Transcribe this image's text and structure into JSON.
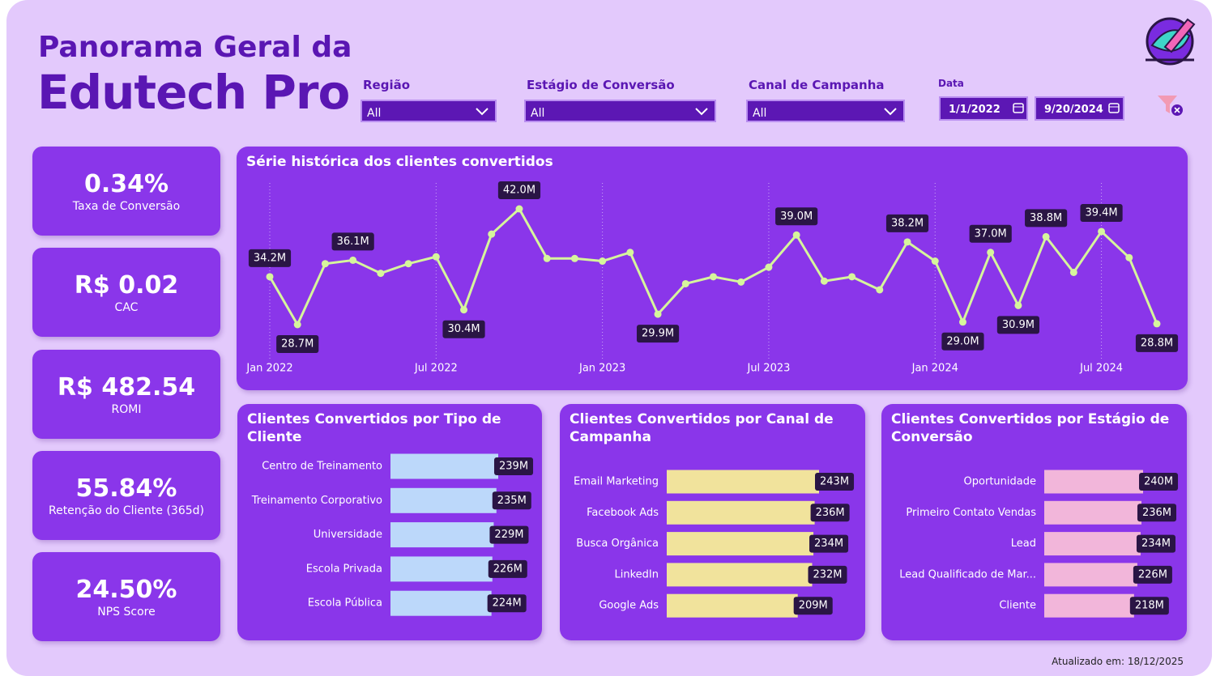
{
  "header": {
    "title_line1": "Panorama Geral da",
    "title_line2": "Edutech Pro"
  },
  "filters": [
    {
      "label": "Região",
      "value": "All"
    },
    {
      "label": "Estágio de Conversão",
      "value": "All"
    },
    {
      "label": "Canal de Campanha",
      "value": "All"
    }
  ],
  "date_filter": {
    "label": "Data",
    "start": "1/1/2022",
    "end": "9/20/2024"
  },
  "kpis": [
    {
      "value": "0.34%",
      "label": "Taxa de Conversão"
    },
    {
      "value": "R$ 0.02",
      "label": "CAC"
    },
    {
      "value": "R$ 482.54",
      "label": "ROMI"
    },
    {
      "value": "55.84%",
      "label": "Retenção do Cliente (365d)"
    },
    {
      "value": "24.50%",
      "label": "NPS Score"
    }
  ],
  "chart_data": [
    {
      "type": "line",
      "title": "Série histórica dos clientes convertidos",
      "categories": [
        "Jan 2022",
        null,
        null,
        null,
        null,
        null,
        "Jul 2022",
        null,
        null,
        null,
        null,
        null,
        "Jan 2023",
        null,
        null,
        null,
        null,
        null,
        "Jul 2023",
        null,
        null,
        null,
        null,
        null,
        "Jan 2024",
        null,
        null,
        null,
        null,
        null,
        "Jul 2024",
        null,
        null
      ],
      "values": [
        34.2,
        28.7,
        35.7,
        36.1,
        34.6,
        35.7,
        36.5,
        30.4,
        39.1,
        42.0,
        36.3,
        36.3,
        36.0,
        37.0,
        29.9,
        33.4,
        34.2,
        33.6,
        35.3,
        39.0,
        33.7,
        34.2,
        32.7,
        38.2,
        36.0,
        29.0,
        37.0,
        30.9,
        38.8,
        34.7,
        39.4,
        36.4,
        28.8
      ],
      "value_labels": [
        "34.2M",
        "28.7M",
        null,
        "36.1M",
        null,
        null,
        null,
        "30.4M",
        null,
        "42.0M",
        null,
        null,
        null,
        null,
        "29.9M",
        null,
        null,
        null,
        null,
        "39.0M",
        null,
        null,
        null,
        "38.2M",
        null,
        "29.0M",
        "37.0M",
        "30.9M",
        "38.8M",
        null,
        "39.4M",
        null,
        "28.8M"
      ],
      "color": "#d6f59c",
      "grid": true
    },
    {
      "type": "bar",
      "orientation": "horizontal",
      "title": "Clientes Convertidos por Tipo de Cliente",
      "categories": [
        "Centro de Treinamento",
        "Treinamento Corporativo",
        "Universidade",
        "Escola Privada",
        "Escola Pública"
      ],
      "values": [
        239,
        235,
        229,
        226,
        224
      ],
      "value_labels": [
        "239M",
        "235M",
        "229M",
        "226M",
        "224M"
      ],
      "color": "#bcd8fa"
    },
    {
      "type": "bar",
      "orientation": "horizontal",
      "title": "Clientes Convertidos por Canal de Campanha",
      "categories": [
        "Email Marketing",
        "Facebook Ads",
        "Busca Orgânica",
        "LinkedIn",
        "Google Ads"
      ],
      "values": [
        243,
        236,
        234,
        232,
        209
      ],
      "value_labels": [
        "243M",
        "236M",
        "234M",
        "232M",
        "209M"
      ],
      "color": "#f1e39c"
    },
    {
      "type": "bar",
      "orientation": "horizontal",
      "title": "Clientes Convertidos por Estágio de Conversão",
      "categories": [
        "Oportunidade",
        "Primeiro Contato Vendas",
        "Lead",
        "Lead Qualificado de Mar...",
        "Cliente"
      ],
      "values": [
        240,
        236,
        234,
        226,
        218
      ],
      "value_labels": [
        "240M",
        "236M",
        "234M",
        "226M",
        "218M"
      ],
      "color": "#f2b6da"
    }
  ],
  "footer": "Atualizado em: 18/12/2025"
}
